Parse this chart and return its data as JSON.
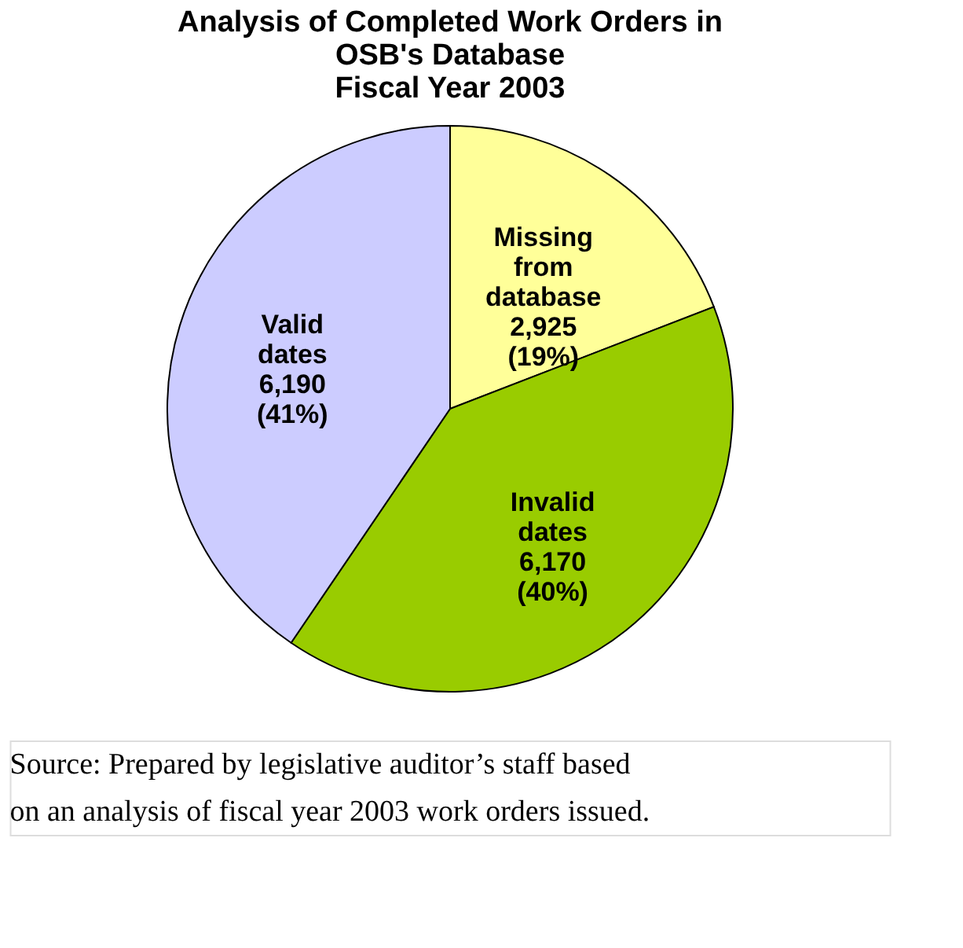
{
  "chart_data": {
    "type": "pie",
    "title": "Analysis of Completed Work Orders in\nOSB's Database\nFiscal Year 2003",
    "categories": [
      "Missing from database",
      "Invalid dates",
      "Valid dates"
    ],
    "values": [
      2925,
      6170,
      6190
    ],
    "value_labels": [
      "2,925 (19%)",
      "6,170 (40%)",
      "6,190 (41%)"
    ],
    "colors": [
      "#ffff99",
      "#99cc00",
      "#ccccff"
    ],
    "legend": false,
    "annotations": [
      "Source: Prepared by legislative auditor’s staff based on an analysis of fiscal year 2003 work orders issued."
    ]
  }
}
